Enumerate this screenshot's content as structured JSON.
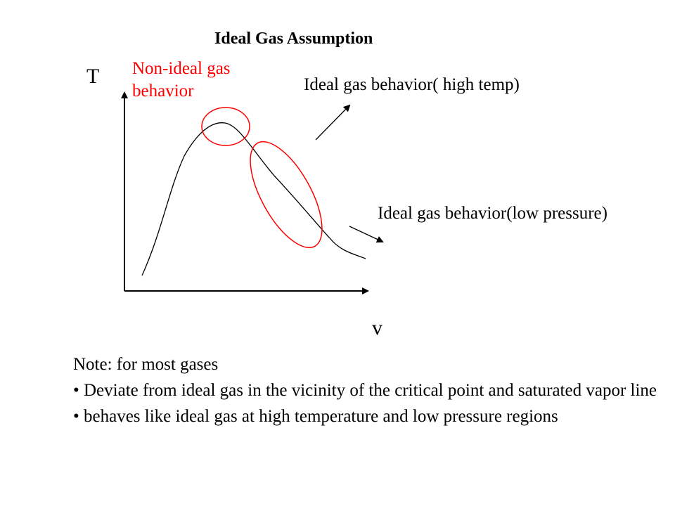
{
  "title": "Ideal Gas Assumption",
  "axes": {
    "y_label": "T",
    "x_label": "v"
  },
  "annotations": {
    "non_ideal": "Non-ideal gas behavior",
    "high_temp": "Ideal gas behavior( high temp)",
    "low_pressure": "Ideal gas behavior(low pressure)"
  },
  "notes": {
    "heading": "Note: for most gases",
    "bullets": [
      "• Deviate from ideal gas in the vicinity of the critical point and saturated vapor line",
      "• behaves like ideal gas at high temperature and low pressure regions"
    ]
  },
  "colors": {
    "highlight": "#ff0000",
    "ink": "#000000"
  }
}
